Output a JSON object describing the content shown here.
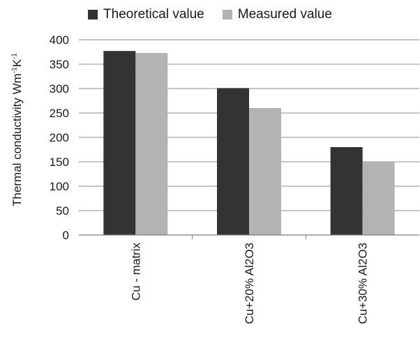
{
  "chart_data": {
    "type": "bar",
    "categories": [
      "Cu - matrix",
      "Cu+20% Al2O3",
      "Cu+30% Al2O3"
    ],
    "series": [
      {
        "name": "Theoretical value",
        "color": "#333333",
        "values": [
          377,
          301,
          180
        ]
      },
      {
        "name": "Measured value",
        "color": "#b3b3b3",
        "values": [
          373,
          260,
          150
        ]
      }
    ],
    "ylabel": {
      "text": "Thermal conductivity Wm",
      "sup1": "-1",
      "mid": "K",
      "sup2": "-1"
    },
    "ylim": [
      0,
      400
    ],
    "yticks": [
      0,
      50,
      100,
      150,
      200,
      250,
      300,
      350,
      400
    ],
    "grid": true,
    "legend_position": "top"
  }
}
